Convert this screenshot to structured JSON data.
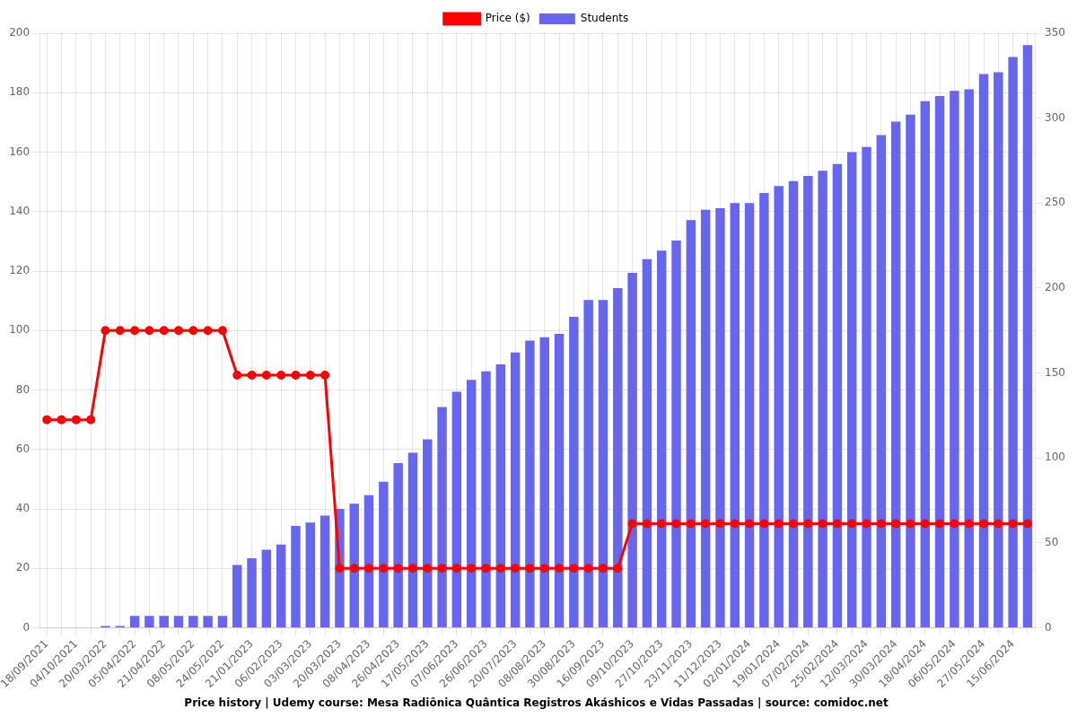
{
  "chart_data": {
    "type": "bar",
    "title": "Price history | Udemy course: Mesa Radiônica Quântica Registros Akáshicos e Vidas Passadas | source: comidoc.net",
    "categories": [
      "18/09/2021",
      null,
      "04/10/2021",
      null,
      "20/03/2022",
      null,
      "05/04/2022",
      null,
      "21/04/2022",
      null,
      "08/05/2022",
      null,
      "24/05/2022",
      null,
      "21/01/2023",
      null,
      "06/02/2023",
      null,
      "03/03/2023",
      null,
      "20/03/2023",
      null,
      "08/04/2023",
      null,
      "26/04/2023",
      null,
      "17/05/2023",
      null,
      "07/06/2023",
      null,
      "26/06/2023",
      null,
      "20/07/2023",
      null,
      "08/08/2023",
      null,
      "30/08/2023",
      null,
      "16/09/2023",
      null,
      "09/10/2023",
      null,
      "27/10/2023",
      null,
      "23/11/2023",
      null,
      "11/12/2023",
      null,
      "02/01/2024",
      null,
      "19/01/2024",
      null,
      "07/02/2024",
      null,
      "25/02/2024",
      null,
      "12/03/2024",
      null,
      "30/03/2024",
      null,
      "18/04/2024",
      null,
      "06/05/2024",
      null,
      "27/05/2024",
      null,
      "15/06/2024",
      null
    ],
    "series": [
      {
        "name": "Price ($)",
        "type": "line",
        "color": "#ff0000",
        "marker": "circle",
        "values": [
          70,
          70,
          70,
          70,
          100,
          100,
          100,
          100,
          100,
          100,
          100,
          100,
          100,
          85,
          85,
          85,
          85,
          85,
          85,
          85,
          20,
          20,
          20,
          20,
          20,
          20,
          20,
          20,
          20,
          20,
          20,
          20,
          20,
          20,
          20,
          20,
          20,
          20,
          20,
          20,
          35,
          35,
          35,
          35,
          35,
          35,
          35,
          35,
          35,
          35,
          35,
          35,
          35,
          35,
          35,
          35,
          35,
          35,
          35,
          35,
          35,
          35,
          35,
          35,
          35,
          35,
          35,
          35
        ]
      },
      {
        "name": "Students",
        "type": "bar",
        "color": "#6666ee",
        "axis": "y2",
        "values": [
          0,
          0,
          0,
          0,
          1,
          1,
          7,
          7,
          7,
          7,
          7,
          7,
          7,
          37,
          41,
          46,
          49,
          60,
          62,
          66,
          70,
          73,
          78,
          86,
          97,
          103,
          111,
          130,
          139,
          146,
          151,
          155,
          162,
          169,
          171,
          173,
          183,
          193,
          193,
          200,
          209,
          217,
          222,
          228,
          240,
          246,
          247,
          250,
          250,
          256,
          260,
          263,
          266,
          269,
          273,
          280,
          283,
          290,
          298,
          302,
          310,
          313,
          316,
          317,
          326,
          327,
          336,
          343
        ]
      }
    ],
    "ylim": [
      0,
      200
    ],
    "yticks": [
      0,
      20,
      40,
      60,
      80,
      100,
      120,
      140,
      160,
      180,
      200
    ],
    "y2lim": [
      0,
      350
    ],
    "y2ticks": [
      0,
      50,
      100,
      150,
      200,
      250,
      300,
      350
    ],
    "grid": true,
    "legend": "top"
  }
}
